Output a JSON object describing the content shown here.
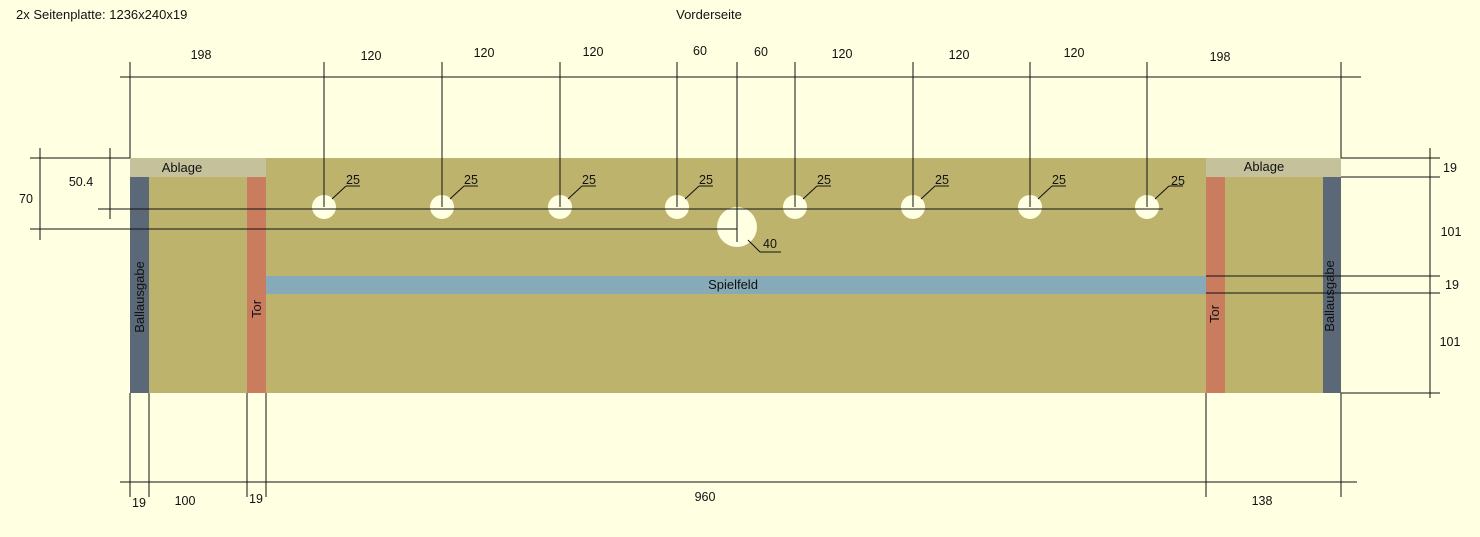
{
  "header": {
    "part_label": "2x Seitenplatte: 1236x240x19",
    "view_title": "Vorderseite"
  },
  "colors": {
    "background": "#ffffe1",
    "board": "#bdb36d",
    "ablage": "#c4c19b",
    "ballausgabe": "#5a6878",
    "tor": "#c97c5e",
    "spielfeld": "#86aab8",
    "hole": "#ffffe1",
    "line": "#111111"
  },
  "board": {
    "ablage_label_left": "Ablage",
    "ablage_label_right": "Ablage",
    "ballausgabe_label_left": "Ballausgabe",
    "ballausgabe_label_right": "Ballausgabe",
    "tor_label_left": "Tor",
    "tor_label_right": "Tor",
    "spielfeld_label": "Spielfeld"
  },
  "holes": {
    "small_labels": [
      "25",
      "25",
      "25",
      "25",
      "25",
      "25",
      "25",
      "25"
    ],
    "large_label": "40"
  },
  "dimensions": {
    "top": [
      "198",
      "120",
      "120",
      "120",
      "60",
      "60",
      "120",
      "120",
      "120",
      "198"
    ],
    "bottom": [
      "19",
      "100",
      "19",
      "960",
      "138"
    ],
    "left": [
      "50.4",
      "70"
    ],
    "right": [
      "19",
      "101",
      "19",
      "101"
    ]
  }
}
